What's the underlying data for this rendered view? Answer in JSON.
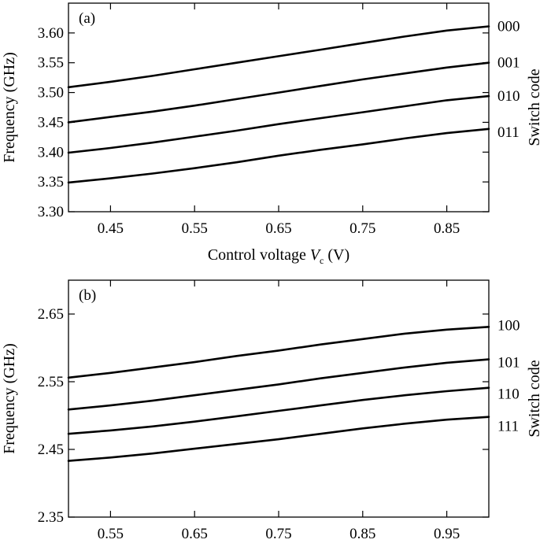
{
  "chart_data": [
    {
      "type": "line",
      "panel_label": "(a)",
      "ylabel": "Frequency (GHz)",
      "xlabel_main": "Control voltage ",
      "xlabel_var": "V",
      "xlabel_sub": "c",
      "xlabel_unit": " (V)",
      "right_label": "Switch code",
      "xlim": [
        0.4,
        0.9
      ],
      "ylim": [
        3.3,
        3.65
      ],
      "xticks": [
        0.45,
        0.55,
        0.65,
        0.75,
        0.85
      ],
      "xtick_labels": [
        "0.45",
        "0.55",
        "0.65",
        "0.75",
        "0.85"
      ],
      "yticks": [
        3.3,
        3.35,
        3.4,
        3.45,
        3.5,
        3.55,
        3.6
      ],
      "ytick_labels": [
        "3.30",
        "3.35",
        "3.40",
        "3.45",
        "3.50",
        "3.55",
        "3.60"
      ],
      "grid": false,
      "x": [
        0.4,
        0.45,
        0.5,
        0.55,
        0.6,
        0.65,
        0.7,
        0.75,
        0.8,
        0.85,
        0.9
      ],
      "series": [
        {
          "code": "000",
          "values": [
            3.509,
            3.518,
            3.528,
            3.539,
            3.55,
            3.561,
            3.572,
            3.583,
            3.594,
            3.604,
            3.611
          ]
        },
        {
          "code": "001",
          "values": [
            3.45,
            3.459,
            3.468,
            3.478,
            3.489,
            3.5,
            3.511,
            3.522,
            3.532,
            3.542,
            3.55
          ]
        },
        {
          "code": "010",
          "values": [
            3.399,
            3.407,
            3.416,
            3.426,
            3.436,
            3.447,
            3.457,
            3.467,
            3.477,
            3.487,
            3.494
          ]
        },
        {
          "code": "011",
          "values": [
            3.349,
            3.356,
            3.364,
            3.373,
            3.383,
            3.394,
            3.404,
            3.413,
            3.423,
            3.432,
            3.439
          ]
        }
      ]
    },
    {
      "type": "line",
      "panel_label": "(b)",
      "ylabel": "Frequency (GHz)",
      "xlabel_main": "Control voltage ",
      "xlabel_var": "V",
      "xlabel_sub": "c",
      "xlabel_unit": " (V)",
      "right_label": "Switch code",
      "xlim": [
        0.5,
        1.0
      ],
      "ylim": [
        2.35,
        2.7
      ],
      "xticks": [
        0.55,
        0.65,
        0.75,
        0.85,
        0.95
      ],
      "xtick_labels": [
        "0.55",
        "0.65",
        "0.75",
        "0.85",
        "0.95"
      ],
      "yticks": [
        2.35,
        2.45,
        2.55,
        2.65
      ],
      "ytick_labels": [
        "2.35",
        "2.45",
        "2.55",
        "2.65"
      ],
      "grid": false,
      "x": [
        0.5,
        0.55,
        0.6,
        0.65,
        0.7,
        0.75,
        0.8,
        0.85,
        0.9,
        0.95,
        1.0
      ],
      "series": [
        {
          "code": "100",
          "values": [
            2.556,
            2.563,
            2.571,
            2.579,
            2.588,
            2.596,
            2.605,
            2.613,
            2.621,
            2.627,
            2.631
          ]
        },
        {
          "code": "101",
          "values": [
            2.509,
            2.515,
            2.522,
            2.53,
            2.538,
            2.546,
            2.555,
            2.563,
            2.571,
            2.578,
            2.583
          ]
        },
        {
          "code": "110",
          "values": [
            2.473,
            2.478,
            2.484,
            2.491,
            2.499,
            2.507,
            2.515,
            2.523,
            2.53,
            2.536,
            2.541
          ]
        },
        {
          "code": "111",
          "values": [
            2.433,
            2.438,
            2.444,
            2.451,
            2.458,
            2.465,
            2.473,
            2.481,
            2.488,
            2.494,
            2.498
          ]
        }
      ]
    }
  ]
}
